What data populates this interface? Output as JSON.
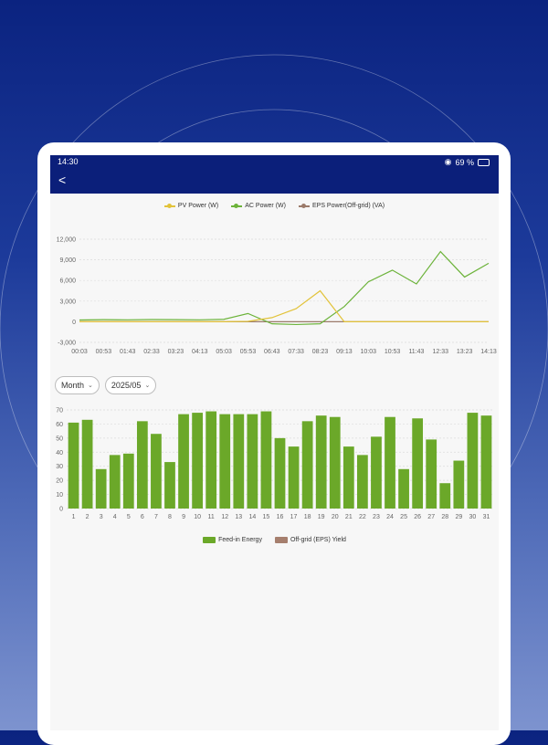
{
  "status": {
    "time": "14:30",
    "battery": "69 %"
  },
  "nav": {
    "back": "<"
  },
  "legend_top": [
    {
      "label": "PV Power (W)",
      "color": "#e2c33a"
    },
    {
      "label": "AC Power (W)",
      "color": "#6cb33a"
    },
    {
      "label": "EPS Power(Off-grid) (VA)",
      "color": "#9b7a6a"
    }
  ],
  "controls": {
    "period": "Month",
    "date": "2025/05"
  },
  "legend_bottom": [
    {
      "label": "Feed-in Energy",
      "color": "#6ba829"
    },
    {
      "label": "Off-grid (EPS) Yield",
      "color": "#a67f6e"
    }
  ],
  "chart_data": [
    {
      "type": "line",
      "x": [
        "00:03",
        "00:53",
        "01:43",
        "02:33",
        "03:23",
        "04:13",
        "05:03",
        "05:53",
        "06:43",
        "07:33",
        "08:23",
        "09:13",
        "10:03",
        "10:53",
        "11:43",
        "12:33",
        "13:23",
        "14:13"
      ],
      "ylim": [
        -3000,
        12000
      ],
      "yticks": [
        "12,000",
        "9,000",
        "6,000",
        "3,000",
        "0",
        "-3,000"
      ],
      "ytick_values": [
        12000,
        9000,
        6000,
        3000,
        0,
        -3000
      ],
      "series": [
        {
          "name": "PV Power (W)",
          "color": "#e2c33a",
          "values": [
            0,
            0,
            0,
            0,
            0,
            0,
            0,
            50,
            600,
            1900,
            4500,
            0,
            0,
            0,
            0,
            0,
            0,
            0
          ]
        },
        {
          "name": "AC Power (W)",
          "color": "#6cb33a",
          "values": [
            250,
            300,
            280,
            320,
            300,
            280,
            350,
            1200,
            -300,
            -400,
            -300,
            2200,
            5800,
            7500,
            5500,
            10200,
            6500,
            8500
          ]
        },
        {
          "name": "EPS Power(Off-grid) (VA)",
          "color": "#9b7a6a",
          "values": [
            0,
            0,
            0,
            0,
            0,
            0,
            0,
            0,
            0,
            0,
            0,
            0,
            0,
            0,
            0,
            0,
            0,
            0
          ]
        }
      ]
    },
    {
      "type": "bar",
      "categories": [
        "1",
        "2",
        "3",
        "4",
        "5",
        "6",
        "7",
        "8",
        "9",
        "10",
        "11",
        "12",
        "13",
        "14",
        "15",
        "16",
        "17",
        "18",
        "19",
        "20",
        "21",
        "22",
        "23",
        "24",
        "25",
        "26",
        "27",
        "28",
        "29",
        "30",
        "31"
      ],
      "ylim": [
        0,
        70
      ],
      "yticks": [
        "70",
        "60",
        "50",
        "40",
        "30",
        "20",
        "10",
        "0"
      ],
      "ytick_values": [
        70,
        60,
        50,
        40,
        30,
        20,
        10,
        0
      ],
      "series": [
        {
          "name": "Feed-in Energy",
          "color": "#6ba829",
          "values": [
            61,
            63,
            28,
            38,
            39,
            62,
            53,
            33,
            67,
            68,
            69,
            67,
            67,
            67,
            69,
            50,
            44,
            62,
            66,
            65,
            44,
            38,
            51,
            65,
            28,
            64,
            49,
            18,
            34,
            68,
            66
          ]
        },
        {
          "name": "Off-grid (EPS) Yield",
          "color": "#a67f6e",
          "values": [
            0,
            0,
            0,
            0,
            0,
            0,
            0,
            0,
            0,
            0,
            0,
            0,
            0,
            0,
            0,
            0,
            0,
            0,
            0,
            0,
            0,
            0,
            0,
            0,
            0,
            0,
            0,
            0,
            0,
            0,
            0
          ]
        }
      ]
    }
  ]
}
